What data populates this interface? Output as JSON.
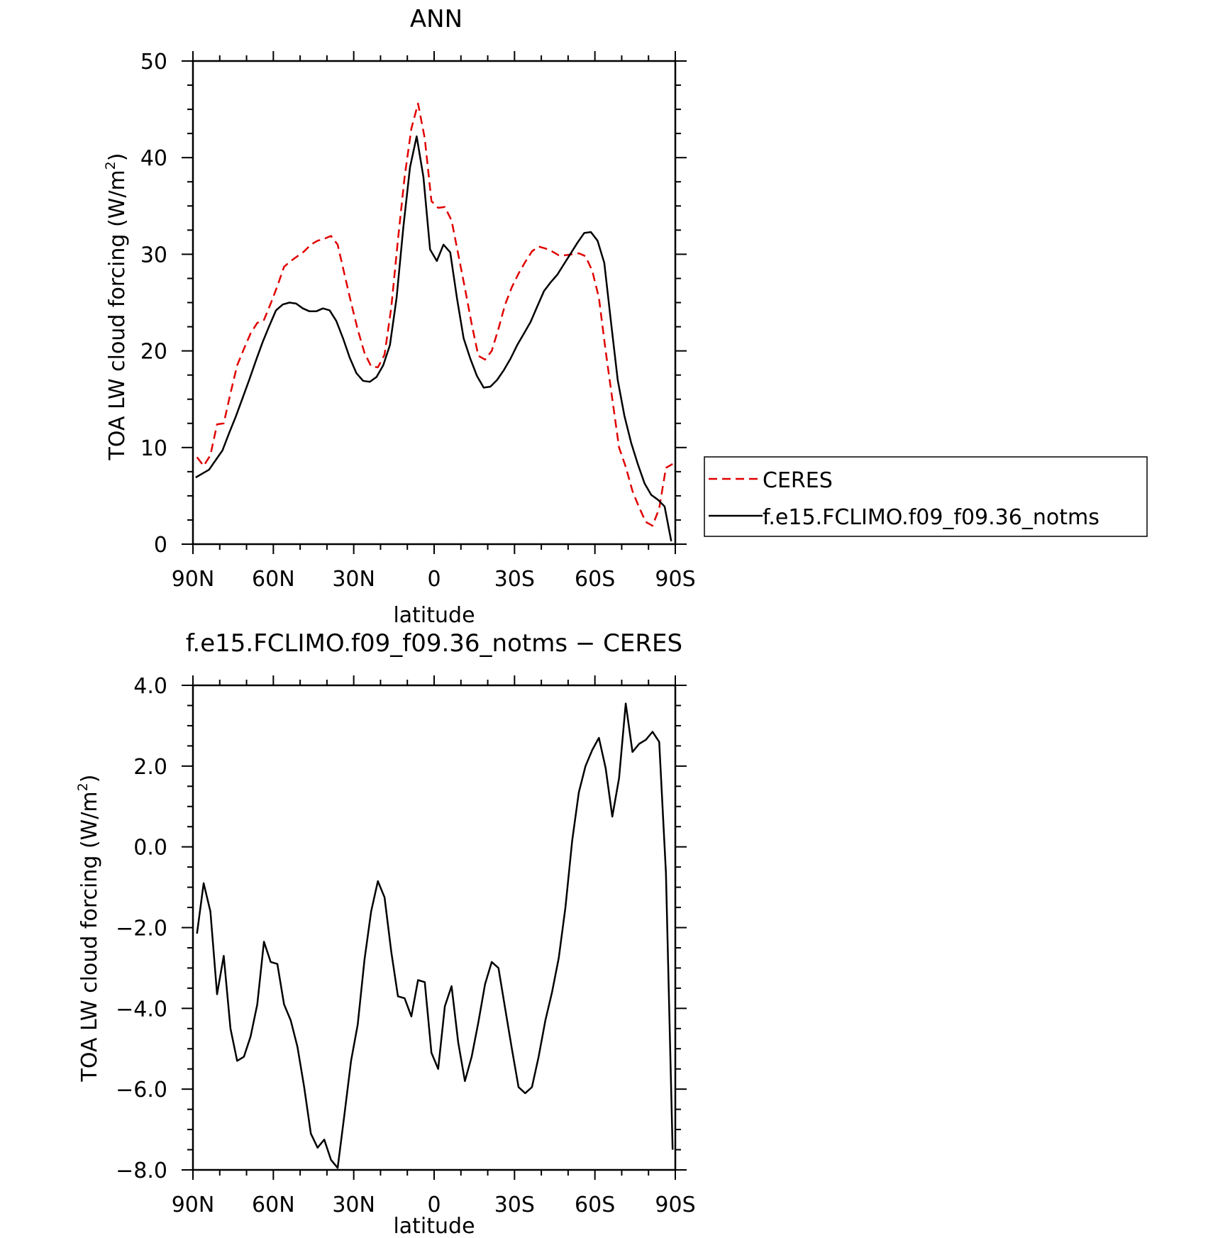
{
  "chart_data": [
    {
      "type": "line",
      "title": "ANN",
      "xlabel": "latitude",
      "ylabel": "TOA LW cloud forcing (W/m",
      "ylabel_sup": "2",
      "ylabel_close": ")",
      "xlim": [
        -90,
        90
      ],
      "ylim": [
        0,
        50
      ],
      "xticks": [
        -90,
        -60,
        -30,
        0,
        30,
        60,
        90
      ],
      "xtick_labels": [
        "90N",
        "60N",
        "30N",
        "0",
        "30S",
        "60S",
        "90S"
      ],
      "yticks": [
        0,
        10,
        20,
        30,
        40,
        50
      ],
      "ytick_labels": [
        "0",
        "10",
        "20",
        "30",
        "40",
        "50"
      ],
      "legend": {
        "placement": "right",
        "entries": [
          {
            "label": "CERES",
            "color": "#e00000",
            "style": "dashed"
          },
          {
            "label": "f.e15.FCLIMO.f09_f09.36_notms",
            "color": "#000000",
            "style": "solid"
          }
        ]
      },
      "series": [
        {
          "name": "CERES",
          "color": "#e00000",
          "style": "dashed",
          "x": [
            -88.5,
            -86,
            -83.5,
            -81,
            -78.5,
            -76,
            -73.5,
            -71,
            -68.5,
            -66,
            -63.5,
            -61,
            -58.5,
            -56,
            -53.5,
            -51,
            -48.5,
            -46,
            -43.5,
            -41,
            -38.5,
            -36,
            -33.5,
            -31,
            -28.5,
            -26,
            -23.5,
            -21,
            -18.5,
            -16,
            -13.5,
            -11,
            -8.5,
            -6,
            -3.5,
            -1,
            1.5,
            4,
            6.5,
            9,
            11.5,
            14,
            16.5,
            19,
            21.5,
            24,
            26.5,
            29,
            31.5,
            34,
            36.5,
            39,
            41.5,
            44,
            46.5,
            49,
            51.5,
            54,
            56.5,
            59,
            61.5,
            64,
            66.5,
            69,
            71.5,
            74,
            76.5,
            79,
            81.5,
            84,
            86.5,
            89
          ],
          "values": [
            9.0,
            8.1,
            9.2,
            12.4,
            12.5,
            15.6,
            18.5,
            20.2,
            21.8,
            22.9,
            23.2,
            24.9,
            26.7,
            28.7,
            29.3,
            29.8,
            30.3,
            31.0,
            31.4,
            31.6,
            31.9,
            31.0,
            28.0,
            25.0,
            22.2,
            19.8,
            18.4,
            18.3,
            19.6,
            24.5,
            31.5,
            38.0,
            43.0,
            45.6,
            42.0,
            35.5,
            34.8,
            34.9,
            33.5,
            30.0,
            26.5,
            22.8,
            19.5,
            19.1,
            20.0,
            22.3,
            24.8,
            26.6,
            28.0,
            29.2,
            30.3,
            30.8,
            30.6,
            30.3,
            29.9,
            29.9,
            30.0,
            30.1,
            29.8,
            28.3,
            25.5,
            20.0,
            15.0,
            10.0,
            8.0,
            5.5,
            3.8,
            2.3,
            1.9,
            3.7,
            7.9,
            8.3
          ]
        },
        {
          "name": "f.e15.FCLIMO.f09_f09.36_notms",
          "color": "#000000",
          "style": "solid",
          "x": [
            -89,
            -86.5,
            -84,
            -81.5,
            -79,
            -76.5,
            -74,
            -71.5,
            -69,
            -66.5,
            -64,
            -61.5,
            -59,
            -56.5,
            -54,
            -51.5,
            -49,
            -46.5,
            -44,
            -41.5,
            -39,
            -36.5,
            -34,
            -31.5,
            -29,
            -26.5,
            -24,
            -21.5,
            -19,
            -16.5,
            -14,
            -11.5,
            -9,
            -6.5,
            -4,
            -1.5,
            1,
            3.5,
            6,
            8.5,
            11,
            13.5,
            16,
            18.5,
            21,
            23.5,
            26,
            28.5,
            31,
            33.5,
            36,
            38.5,
            41,
            43.5,
            46,
            48.5,
            51,
            53.5,
            56,
            58.5,
            61,
            63.5,
            66,
            68.5,
            71,
            73.5,
            76,
            78.5,
            81,
            83.5,
            86,
            88.5
          ],
          "values": [
            6.9,
            7.3,
            7.7,
            8.7,
            9.7,
            11.5,
            13.2,
            15.1,
            17.0,
            19.0,
            20.9,
            22.6,
            24.2,
            24.8,
            25.0,
            24.9,
            24.4,
            24.1,
            24.1,
            24.4,
            24.2,
            23.1,
            21.3,
            19.3,
            17.7,
            16.9,
            16.8,
            17.3,
            18.5,
            20.6,
            25.5,
            32.8,
            39.0,
            42.2,
            38.0,
            30.5,
            29.3,
            31.0,
            30.2,
            25.5,
            21.3,
            19.2,
            17.4,
            16.2,
            16.3,
            17.0,
            18.0,
            19.2,
            20.6,
            21.8,
            23.0,
            24.6,
            26.2,
            27.1,
            27.9,
            29.0,
            30.1,
            31.2,
            32.2,
            32.3,
            31.4,
            29.1,
            23.0,
            17.0,
            13.3,
            10.5,
            8.3,
            6.3,
            5.1,
            4.6,
            3.9,
            0.3
          ]
        }
      ]
    },
    {
      "type": "line",
      "title": "f.e15.FCLIMO.f09_f09.36_notms − CERES",
      "xlabel": "latitude",
      "ylabel": "TOA LW cloud forcing (W/m",
      "ylabel_sup": "2",
      "ylabel_close": ")",
      "xlim": [
        -90,
        90
      ],
      "ylim": [
        -8,
        4
      ],
      "xticks": [
        -90,
        -60,
        -30,
        0,
        30,
        60,
        90
      ],
      "xtick_labels": [
        "90N",
        "60N",
        "30N",
        "0",
        "30S",
        "60S",
        "90S"
      ],
      "yticks": [
        -8,
        -6,
        -4,
        -2,
        0,
        2,
        4
      ],
      "ytick_labels": [
        "−8.0",
        "−6.0",
        "−4.0",
        "−2.0",
        "0.0",
        "2.0",
        "4.0"
      ],
      "series": [
        {
          "color": "#000000",
          "style": "solid",
          "x": [
            -88.5,
            -86,
            -83.5,
            -81,
            -78.5,
            -76,
            -73.5,
            -71,
            -68.5,
            -66,
            -63.5,
            -61,
            -58.5,
            -56,
            -53.5,
            -51,
            -48.5,
            -46,
            -43.5,
            -41,
            -38.5,
            -36,
            -33.5,
            -31,
            -28.5,
            -26,
            -23.5,
            -21,
            -18.5,
            -16,
            -13.5,
            -11,
            -8.5,
            -6,
            -3.5,
            -1,
            1.5,
            4,
            6.5,
            9,
            11.5,
            14,
            16.5,
            19,
            21.5,
            24,
            26.5,
            29,
            31.5,
            34,
            36.5,
            39,
            41.5,
            44,
            46.5,
            49,
            51.5,
            54,
            56.5,
            59,
            61.5,
            64,
            66.5,
            69,
            71.5,
            74,
            76.5,
            79,
            81.5,
            84,
            86.5,
            89
          ],
          "values": [
            -2.15,
            -0.9,
            -1.6,
            -3.65,
            -2.7,
            -4.5,
            -5.3,
            -5.2,
            -4.7,
            -3.9,
            -2.35,
            -2.85,
            -2.9,
            -3.9,
            -4.3,
            -4.95,
            -5.95,
            -7.1,
            -7.45,
            -7.25,
            -7.75,
            -7.95,
            -6.65,
            -5.3,
            -4.4,
            -2.8,
            -1.6,
            -0.85,
            -1.25,
            -2.6,
            -3.7,
            -3.75,
            -4.2,
            -3.3,
            -3.35,
            -5.1,
            -5.5,
            -3.95,
            -3.45,
            -4.85,
            -5.8,
            -5.2,
            -4.35,
            -3.4,
            -2.85,
            -3.0,
            -4.0,
            -5.0,
            -5.95,
            -6.1,
            -5.95,
            -5.2,
            -4.3,
            -3.6,
            -2.75,
            -1.5,
            0.15,
            1.35,
            2.0,
            2.4,
            2.7,
            1.95,
            0.75,
            1.7,
            3.55,
            2.35,
            2.55,
            2.65,
            2.85,
            2.6,
            -0.65,
            -7.5
          ]
        }
      ]
    }
  ]
}
